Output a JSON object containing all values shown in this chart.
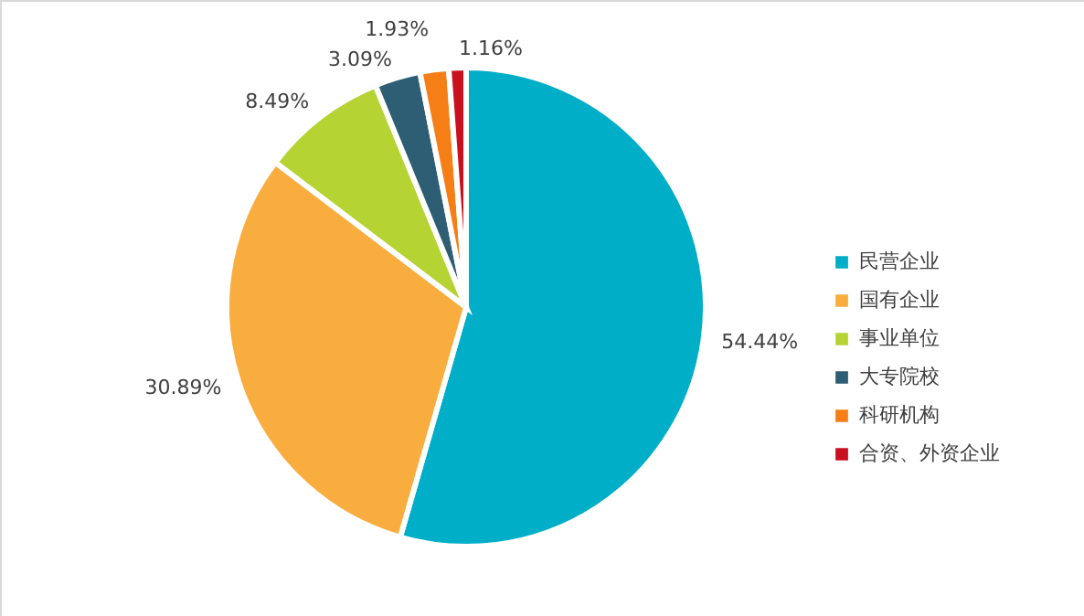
{
  "chart_data": {
    "type": "pie",
    "categories": [
      "民营企业",
      "国有企业",
      "事业单位",
      "大专院校",
      "科研机构",
      "合资、外资企业"
    ],
    "values": [
      54.44,
      30.89,
      8.49,
      3.09,
      1.93,
      1.16
    ],
    "colors": [
      "#00aec7",
      "#f9ad3f",
      "#b6d334",
      "#2e5e73",
      "#f57e16",
      "#c8101f"
    ],
    "value_labels": [
      "54.44%",
      "30.89%",
      "8.49%",
      "3.09%",
      "1.93%",
      "1.16%"
    ],
    "legend": "right"
  }
}
